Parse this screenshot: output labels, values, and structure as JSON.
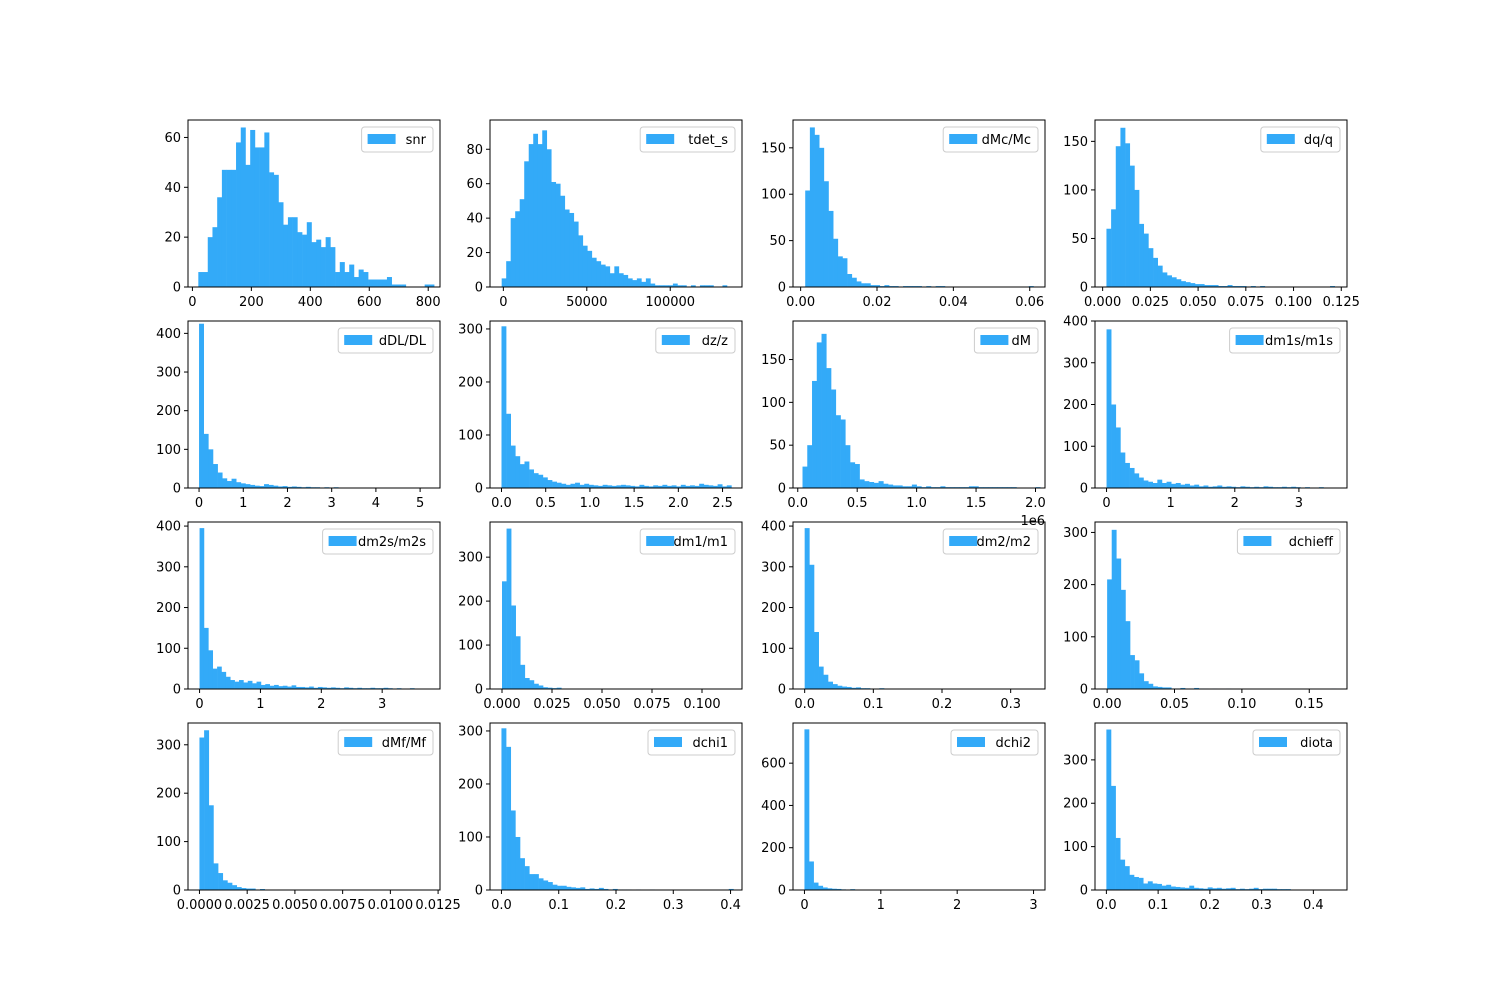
{
  "figure": {
    "background": "#ffffff",
    "bar_color": "#33aaf8"
  },
  "chart_data": [
    {
      "type": "bar",
      "legend": "snr",
      "legend_location": "upper right",
      "xlim": [
        -15,
        840
      ],
      "ylim": [
        0,
        67
      ],
      "xticks": [
        0,
        200,
        400,
        600,
        800
      ],
      "xtick_labels": [
        "0",
        "200",
        "400",
        "600",
        "800"
      ],
      "yticks": [
        0,
        20,
        40,
        60
      ],
      "ytick_labels": [
        "0",
        "20",
        "40",
        "60"
      ],
      "bin_start": 20,
      "bin_width": 16,
      "counts": [
        6,
        6,
        20,
        24,
        36,
        47,
        47,
        47,
        58,
        64,
        49,
        63,
        56,
        56,
        62,
        46,
        45,
        34,
        25,
        28,
        28,
        22,
        21,
        26,
        18,
        19,
        16,
        20,
        16,
        6,
        10,
        6,
        9,
        4,
        7,
        6,
        3,
        3,
        3,
        3,
        4,
        1,
        1,
        1,
        0,
        0,
        0,
        0,
        1,
        1
      ]
    },
    {
      "type": "bar",
      "legend": "tdet_s",
      "legend_location": "upper right",
      "xlim": [
        -8000,
        143000
      ],
      "ylim": [
        0,
        97
      ],
      "xticks": [
        0,
        50000,
        100000
      ],
      "xtick_labels": [
        "0",
        "50000",
        "100000"
      ],
      "yticks": [
        0,
        20,
        40,
        60,
        80
      ],
      "ytick_labels": [
        "0",
        "20",
        "40",
        "60",
        "80"
      ],
      "bin_start": -1000,
      "bin_width": 2700,
      "counts": [
        5,
        15,
        40,
        44,
        51,
        73,
        83,
        89,
        83,
        91,
        80,
        61,
        60,
        53,
        45,
        43,
        38,
        30,
        24,
        21,
        17,
        15,
        13,
        12,
        8,
        12,
        8,
        7,
        5,
        4,
        5,
        3,
        5,
        2,
        1,
        1,
        1,
        1,
        2,
        1,
        1,
        0,
        1,
        0,
        1,
        1,
        1,
        0,
        0,
        1
      ]
    },
    {
      "type": "bar",
      "legend": "dMc/Mc",
      "legend_location": "upper right",
      "xlim": [
        -0.002,
        0.064
      ],
      "ylim": [
        0,
        180
      ],
      "xticks": [
        0,
        0.02,
        0.04,
        0.06
      ],
      "xtick_labels": [
        "0.00",
        "0.02",
        "0.04",
        "0.06"
      ],
      "yticks": [
        0,
        50,
        100,
        150
      ],
      "ytick_labels": [
        "0",
        "50",
        "100",
        "150"
      ],
      "bin_start": 0.0012,
      "bin_width": 0.00122,
      "counts": [
        104,
        172,
        164,
        150,
        114,
        82,
        52,
        33,
        31,
        14,
        10,
        6,
        4,
        4,
        2,
        2,
        1,
        2,
        1,
        1,
        0,
        1,
        1,
        1,
        1,
        0,
        1,
        0,
        1,
        1,
        0,
        0,
        0,
        0,
        0,
        0,
        0,
        0,
        0,
        0,
        0,
        0,
        0,
        0,
        0,
        0,
        0,
        0,
        1
      ]
    },
    {
      "type": "bar",
      "legend": "dq/q",
      "legend_location": "upper right",
      "xlim": [
        -0.004,
        0.128
      ],
      "ylim": [
        0,
        172
      ],
      "xticks": [
        0,
        0.025,
        0.05,
        0.075,
        0.1,
        0.125
      ],
      "xtick_labels": [
        "0.000",
        "0.025",
        "0.050",
        "0.075",
        "0.100",
        "0.125"
      ],
      "yticks": [
        0,
        50,
        100,
        150
      ],
      "ytick_labels": [
        "0",
        "50",
        "100",
        "150"
      ],
      "bin_start": 0.002,
      "bin_width": 0.00244,
      "counts": [
        60,
        80,
        145,
        164,
        148,
        125,
        100,
        65,
        55,
        40,
        30,
        22,
        15,
        12,
        10,
        8,
        6,
        5,
        4,
        3,
        3,
        2,
        2,
        2,
        1,
        1,
        2,
        1,
        1,
        1,
        0,
        1,
        0,
        1,
        0,
        0,
        0,
        0,
        0,
        0,
        0,
        0,
        0,
        0,
        0,
        0,
        0,
        0,
        1
      ]
    },
    {
      "type": "bar",
      "legend": "dDL/DL",
      "legend_location": "upper right",
      "xlim": [
        -0.25,
        5.45
      ],
      "ylim": [
        0,
        432
      ],
      "xticks": [
        0,
        1,
        2,
        3,
        4,
        5
      ],
      "xtick_labels": [
        "0",
        "1",
        "2",
        "3",
        "4",
        "5"
      ],
      "yticks": [
        0,
        100,
        200,
        300,
        400
      ],
      "ytick_labels": [
        "0",
        "100",
        "200",
        "300",
        "400"
      ],
      "bin_start": 0.0,
      "bin_width": 0.105,
      "counts": [
        425,
        140,
        100,
        62,
        40,
        25,
        18,
        24,
        15,
        12,
        10,
        8,
        6,
        5,
        10,
        8,
        6,
        4,
        5,
        3,
        4,
        3,
        2,
        3,
        2,
        2,
        1,
        2,
        1,
        2,
        1,
        1,
        1,
        0,
        1,
        0,
        0,
        0,
        1,
        0,
        0,
        0,
        0,
        0,
        0,
        0,
        0,
        0,
        1,
        0
      ]
    },
    {
      "type": "bar",
      "legend": "dz/z",
      "legend_location": "upper right",
      "xlim": [
        -0.13,
        2.72
      ],
      "ylim": [
        0,
        315
      ],
      "xticks": [
        0,
        0.5,
        1.0,
        1.5,
        2.0,
        2.5
      ],
      "xtick_labels": [
        "0.0",
        "0.5",
        "1.0",
        "1.5",
        "2.0",
        "2.5"
      ],
      "yticks": [
        0,
        100,
        200,
        300
      ],
      "ytick_labels": [
        "0",
        "100",
        "200",
        "300"
      ],
      "bin_start": 0.0,
      "bin_width": 0.052,
      "counts": [
        305,
        140,
        80,
        60,
        45,
        50,
        35,
        28,
        25,
        20,
        15,
        12,
        10,
        8,
        6,
        8,
        10,
        6,
        8,
        6,
        5,
        4,
        6,
        5,
        4,
        5,
        6,
        5,
        4,
        3,
        6,
        4,
        3,
        5,
        4,
        6,
        4,
        5,
        3,
        6,
        4,
        5,
        4,
        8,
        6,
        5,
        4,
        7,
        3,
        5
      ]
    },
    {
      "type": "bar",
      "legend": "dM",
      "legend_location": "upper right",
      "xlim": [
        -40000,
        2080000
      ],
      "ylim": [
        0,
        195
      ],
      "xticks": [
        0,
        500000,
        1000000,
        1500000,
        2000000
      ],
      "xtick_labels": [
        "0.0",
        "0.5",
        "1.0",
        "1.5",
        "2.0"
      ],
      "offset_text": "1e6",
      "yticks": [
        0,
        50,
        100,
        150
      ],
      "ytick_labels": [
        "0",
        "50",
        "100",
        "150"
      ],
      "bin_start": 40000,
      "bin_width": 40000,
      "counts": [
        25,
        50,
        125,
        170,
        180,
        140,
        115,
        85,
        80,
        50,
        30,
        28,
        10,
        8,
        7,
        6,
        8,
        5,
        4,
        3,
        3,
        2,
        2,
        4,
        2,
        1,
        2,
        1,
        1,
        2,
        1,
        1,
        1,
        1,
        1,
        2,
        2,
        1,
        1,
        1,
        1,
        1,
        1,
        1,
        1,
        0,
        0,
        0,
        0,
        1
      ]
    },
    {
      "type": "bar",
      "legend": "dm1s/m1s",
      "legend_location": "upper right",
      "xlim": [
        -0.18,
        3.75
      ],
      "ylim": [
        0,
        400
      ],
      "xticks": [
        0,
        1,
        2,
        3
      ],
      "xtick_labels": [
        "0",
        "1",
        "2",
        "3"
      ],
      "yticks": [
        0,
        100,
        200,
        300,
        400
      ],
      "ytick_labels": [
        "0",
        "100",
        "200",
        "300",
        "400"
      ],
      "bin_start": 0.0,
      "bin_width": 0.072,
      "counts": [
        380,
        200,
        145,
        85,
        60,
        48,
        35,
        25,
        18,
        15,
        12,
        20,
        12,
        15,
        10,
        12,
        8,
        10,
        6,
        8,
        4,
        6,
        3,
        4,
        6,
        3,
        4,
        3,
        2,
        4,
        3,
        2,
        3,
        2,
        4,
        3,
        2,
        2,
        3,
        2,
        3,
        2,
        1,
        2,
        1,
        1,
        2,
        1,
        1,
        1
      ]
    },
    {
      "type": "bar",
      "legend": "dm2s/m2s",
      "legend_location": "upper right",
      "xlim": [
        -0.19,
        3.95
      ],
      "ylim": [
        0,
        410
      ],
      "xticks": [
        0,
        1,
        2,
        3
      ],
      "xtick_labels": [
        "0",
        "1",
        "2",
        "3"
      ],
      "yticks": [
        0,
        100,
        200,
        300,
        400
      ],
      "ytick_labels": [
        "0",
        "100",
        "200",
        "300",
        "400"
      ],
      "bin_start": 0.0,
      "bin_width": 0.072,
      "counts": [
        395,
        150,
        95,
        50,
        55,
        42,
        30,
        22,
        18,
        22,
        16,
        20,
        14,
        18,
        10,
        12,
        8,
        10,
        7,
        8,
        6,
        9,
        5,
        5,
        4,
        6,
        3,
        5,
        4,
        3,
        4,
        3,
        2,
        4,
        3,
        2,
        3,
        2,
        2,
        3,
        2,
        2,
        3,
        2,
        1,
        2,
        1,
        1,
        2,
        1
      ]
    },
    {
      "type": "bar",
      "legend": "dm1/m1",
      "legend_location": "upper right",
      "xlim": [
        -0.006,
        0.12
      ],
      "ylim": [
        0,
        380
      ],
      "xticks": [
        0,
        0.025,
        0.05,
        0.075,
        0.1
      ],
      "xtick_labels": [
        "0.000",
        "0.025",
        "0.050",
        "0.075",
        "0.100"
      ],
      "yticks": [
        0,
        100,
        200,
        300
      ],
      "ytick_labels": [
        "0",
        "100",
        "200",
        "300"
      ],
      "bin_start": 0.0,
      "bin_width": 0.00228,
      "counts": [
        245,
        365,
        190,
        120,
        55,
        25,
        20,
        12,
        8,
        4,
        3,
        2,
        3,
        1,
        1,
        0,
        1,
        0,
        0,
        0,
        0,
        0,
        0,
        0,
        0,
        0,
        0,
        0,
        0,
        0,
        0,
        0,
        0,
        0,
        0,
        0,
        0,
        0,
        0,
        0,
        0,
        0,
        0,
        0,
        0,
        0,
        0,
        0,
        0,
        1
      ]
    },
    {
      "type": "bar",
      "legend": "dm2/m2",
      "legend_location": "upper right",
      "xlim": [
        -0.017,
        0.35
      ],
      "ylim": [
        0,
        410
      ],
      "xticks": [
        0,
        0.1,
        0.2,
        0.3
      ],
      "xtick_labels": [
        "0.0",
        "0.1",
        "0.2",
        "0.3"
      ],
      "yticks": [
        0,
        100,
        200,
        300,
        400
      ],
      "ytick_labels": [
        "0",
        "100",
        "200",
        "300",
        "400"
      ],
      "bin_start": 0.0,
      "bin_width": 0.0068,
      "counts": [
        395,
        305,
        140,
        55,
        35,
        18,
        12,
        8,
        6,
        5,
        3,
        4,
        2,
        2,
        1,
        1,
        2,
        1,
        1,
        1,
        0,
        1,
        0,
        0,
        0,
        1,
        0,
        0,
        0,
        0,
        0,
        0,
        0,
        0,
        0,
        0,
        0,
        0,
        0,
        0,
        0,
        0,
        0,
        0,
        0,
        0,
        0,
        0,
        0,
        1
      ]
    },
    {
      "type": "bar",
      "legend": "dchieff",
      "legend_location": "upper right",
      "xlim": [
        -0.009,
        0.178
      ],
      "ylim": [
        0,
        320
      ],
      "xticks": [
        0,
        0.05,
        0.1,
        0.15
      ],
      "xtick_labels": [
        "0.00",
        "0.05",
        "0.10",
        "0.15"
      ],
      "yticks": [
        0,
        100,
        200,
        300
      ],
      "ytick_labels": [
        "0",
        "100",
        "200",
        "300"
      ],
      "bin_start": 0.0,
      "bin_width": 0.0034,
      "counts": [
        210,
        305,
        250,
        190,
        130,
        65,
        55,
        30,
        15,
        10,
        5,
        4,
        3,
        3,
        1,
        1,
        2,
        1,
        1,
        2,
        1,
        1,
        0,
        1,
        0,
        0,
        1,
        0,
        0,
        0,
        0,
        0,
        0,
        0,
        0,
        0,
        0,
        0,
        0,
        0,
        0,
        0,
        0,
        0,
        0,
        0,
        0,
        0,
        0,
        1
      ]
    },
    {
      "type": "bar",
      "legend": "dMf/Mf",
      "legend_location": "upper right",
      "xlim": [
        -0.0006,
        0.0126
      ],
      "ylim": [
        0,
        345
      ],
      "xticks": [
        0,
        0.0025,
        0.005,
        0.0075,
        0.01,
        0.0125
      ],
      "xtick_labels": [
        "0.0000",
        "0.0025",
        "0.0050",
        "0.0075",
        "0.0100",
        "0.0125"
      ],
      "yticks": [
        0,
        100,
        200,
        300
      ],
      "ytick_labels": [
        "0",
        "100",
        "200",
        "300"
      ],
      "bin_start": 0.0,
      "bin_width": 0.000244,
      "counts": [
        315,
        330,
        175,
        55,
        35,
        20,
        15,
        10,
        6,
        4,
        3,
        3,
        1,
        2,
        1,
        1,
        1,
        0,
        0,
        0,
        0,
        0,
        0,
        0,
        0,
        0,
        0,
        0,
        0,
        0,
        0,
        0,
        0,
        0,
        0,
        0,
        0,
        0,
        0,
        0,
        0,
        0,
        0,
        0,
        0,
        0,
        0,
        0,
        0,
        1
      ]
    },
    {
      "type": "bar",
      "legend": "dchi1",
      "legend_location": "upper right",
      "xlim": [
        -0.02,
        0.42
      ],
      "ylim": [
        0,
        315
      ],
      "xticks": [
        0,
        0.1,
        0.2,
        0.3,
        0.4
      ],
      "xtick_labels": [
        "0.0",
        "0.1",
        "0.2",
        "0.3",
        "0.4"
      ],
      "yticks": [
        0,
        100,
        200,
        300
      ],
      "ytick_labels": [
        "0",
        "100",
        "200",
        "300"
      ],
      "bin_start": 0.0,
      "bin_width": 0.0081,
      "counts": [
        305,
        270,
        150,
        100,
        60,
        45,
        30,
        30,
        22,
        18,
        15,
        10,
        8,
        8,
        6,
        5,
        4,
        5,
        2,
        3,
        2,
        4,
        2,
        1,
        2,
        1,
        1,
        1,
        0,
        1,
        0,
        0,
        1,
        0,
        0,
        0,
        0,
        0,
        0,
        0,
        0,
        0,
        0,
        0,
        0,
        0,
        0,
        0,
        0,
        2
      ]
    },
    {
      "type": "bar",
      "legend": "dchi2",
      "legend_location": "upper right",
      "xlim": [
        -0.15,
        3.15
      ],
      "ylim": [
        0,
        790
      ],
      "xticks": [
        0,
        1,
        2,
        3
      ],
      "xtick_labels": [
        "0",
        "1",
        "2",
        "3"
      ],
      "yticks": [
        0,
        200,
        400,
        600
      ],
      "ytick_labels": [
        "0",
        "200",
        "400",
        "600"
      ],
      "bin_start": 0.0,
      "bin_width": 0.06,
      "counts": [
        760,
        135,
        35,
        20,
        12,
        8,
        6,
        5,
        3,
        2,
        4,
        2,
        1,
        1,
        1,
        1,
        1,
        1,
        1,
        1,
        0,
        1,
        0,
        0,
        0,
        0,
        0,
        0,
        0,
        0,
        0,
        0,
        0,
        0,
        0,
        0,
        0,
        0,
        0,
        0,
        0,
        0,
        0,
        0,
        0,
        0,
        0,
        0,
        0,
        1
      ]
    },
    {
      "type": "bar",
      "legend": "diota",
      "legend_location": "upper right",
      "xlim": [
        -0.022,
        0.465
      ],
      "ylim": [
        0,
        385
      ],
      "xticks": [
        0,
        0.1,
        0.2,
        0.3,
        0.4
      ],
      "xtick_labels": [
        "0.0",
        "0.1",
        "0.2",
        "0.3",
        "0.4"
      ],
      "yticks": [
        0,
        100,
        200,
        300
      ],
      "ytick_labels": [
        "0",
        "100",
        "200",
        "300"
      ],
      "bin_start": 0.0,
      "bin_width": 0.0089,
      "counts": [
        370,
        240,
        120,
        70,
        55,
        35,
        30,
        28,
        15,
        20,
        15,
        14,
        10,
        12,
        8,
        7,
        6,
        5,
        10,
        5,
        4,
        3,
        6,
        4,
        5,
        3,
        4,
        5,
        2,
        3,
        2,
        3,
        5,
        2,
        3,
        3,
        3,
        2,
        2,
        2,
        1,
        1,
        0,
        0,
        0,
        0,
        0,
        0,
        0,
        1
      ]
    }
  ]
}
